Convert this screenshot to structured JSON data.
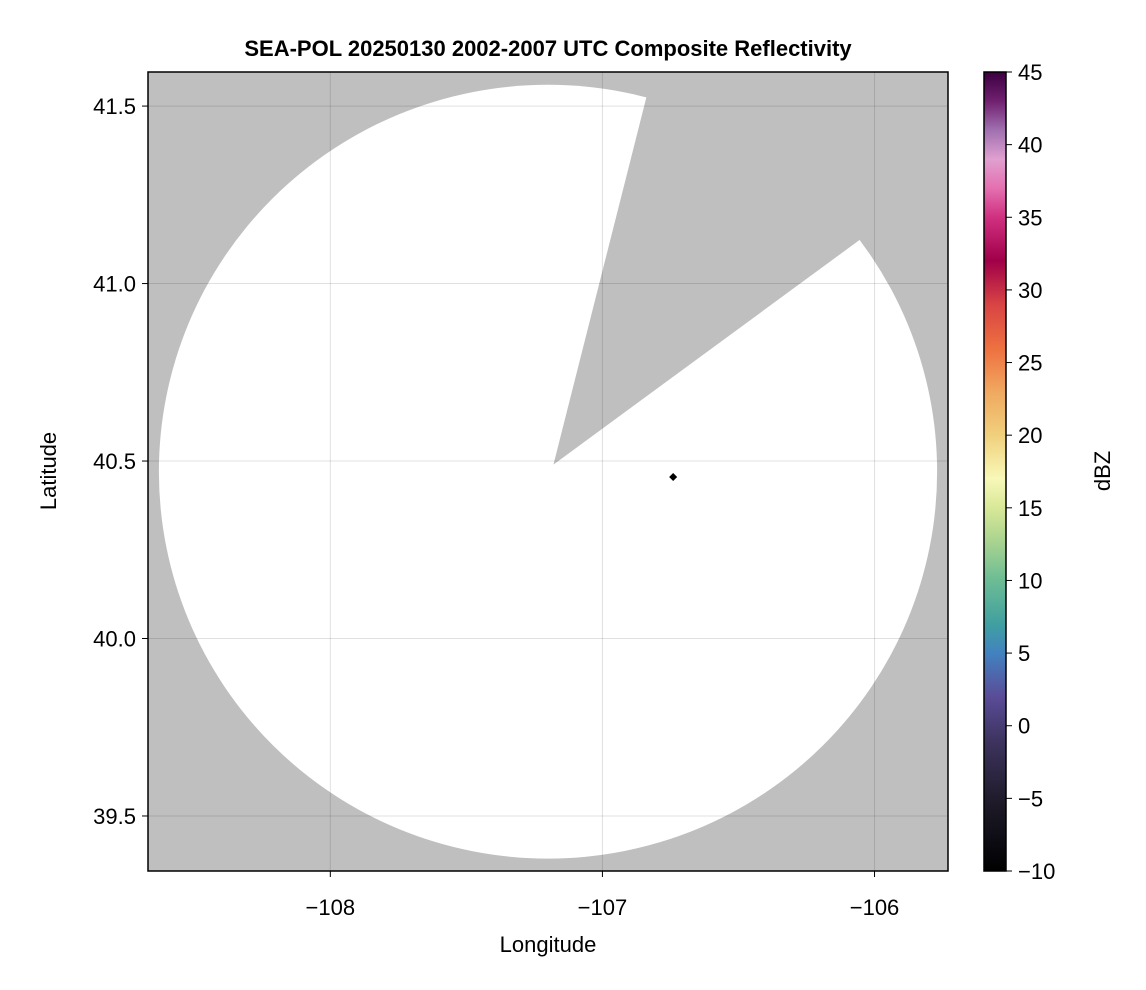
{
  "chart_data": {
    "type": "heatmap",
    "title": "SEA-POL 20250130 2002-2007 UTC Composite Reflectivity",
    "xlabel": "Longitude",
    "ylabel": "Latitude",
    "xlim": [
      -108.67,
      -105.73
    ],
    "ylim": [
      39.345,
      41.596
    ],
    "xticks": [
      -108,
      -107,
      -106
    ],
    "xtick_labels": [
      "−108",
      "−107",
      "−106"
    ],
    "yticks": [
      39.5,
      40.0,
      40.5,
      41.0,
      41.5
    ],
    "ytick_labels": [
      "39.5",
      "40.0",
      "40.5",
      "41.0",
      "41.5"
    ],
    "grid": true,
    "background_color": "#bfbfbf",
    "coverage": {
      "center": [
        -107.2,
        40.47
      ],
      "radius_lon": 1.43,
      "radius_lat": 1.09,
      "color": "#ffffff",
      "blocked_wedge": {
        "apex": [
          -107.18,
          40.49
        ],
        "edge1": [
          -106.84,
          41.52
        ],
        "edge2": [
          -106.06,
          41.12
        ]
      }
    },
    "marker": {
      "lon": -106.74,
      "lat": 40.455,
      "color": "#000000"
    },
    "colorbar": {
      "label": "dBZ",
      "range": [
        -10,
        45
      ],
      "ticks": [
        -10,
        -5,
        0,
        5,
        10,
        15,
        20,
        25,
        30,
        35,
        40,
        45
      ],
      "tick_labels": [
        "−10",
        "−5",
        "0",
        "5",
        "10",
        "15",
        "20",
        "25",
        "30",
        "35",
        "40",
        "45"
      ],
      "stops": [
        [
          -10,
          "#000000"
        ],
        [
          -5,
          "#201c2c"
        ],
        [
          -1,
          "#3e3460"
        ],
        [
          2,
          "#5a4c98"
        ],
        [
          5,
          "#4282c0"
        ],
        [
          7,
          "#40a0a0"
        ],
        [
          10,
          "#6cbc94"
        ],
        [
          13,
          "#b0d690"
        ],
        [
          15,
          "#d8e898"
        ],
        [
          17,
          "#f8f8b8"
        ],
        [
          20,
          "#f0d07c"
        ],
        [
          23,
          "#f0a860"
        ],
        [
          26,
          "#ee7040"
        ],
        [
          29,
          "#d84444"
        ],
        [
          32,
          "#a00048"
        ],
        [
          35,
          "#d03080"
        ],
        [
          37,
          "#e470b0"
        ],
        [
          39,
          "#e0a0d0"
        ],
        [
          41,
          "#a070b0"
        ],
        [
          43,
          "#702070"
        ],
        [
          45,
          "#3c0040"
        ]
      ]
    }
  }
}
